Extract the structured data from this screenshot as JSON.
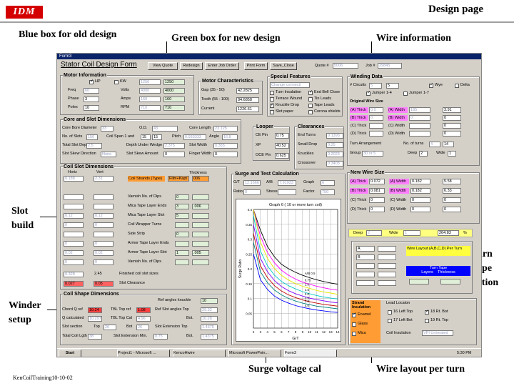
{
  "header": {
    "logo": "IDM",
    "title": "Design page",
    "footer": "KenCoilTraining10-10-02"
  },
  "callouts": {
    "blue_box": "Blue box for old design",
    "green_box": "Green box for new design",
    "wire_info": "Wire information",
    "slot_build": "Slot\nbuild",
    "winder_setup": "Winder\nsetup",
    "turn_tape": "Turn\nTape\noption",
    "surge_cal": "Surge voltage cal",
    "wire_layout": "Wire layout per turn"
  },
  "window": {
    "title": "Form3",
    "form_title": "Stator Coil Design  Form",
    "buttons": [
      "View Quote",
      "Redesign",
      "Enter Job Order",
      "Print Form",
      "Save_Close"
    ],
    "quote_label": "Quote #",
    "quote_value": "5006",
    "job_label": "Job #",
    "job_value": "29845"
  },
  "motor_info": {
    "title": "Motor Information",
    "hp_label": "HP",
    "kw_label": "KW",
    "hp_old": "1250",
    "hp_new": "1250",
    "rows": [
      {
        "label": "Freq",
        "val": "60",
        "label2": "Volts",
        "old": "4000",
        "new": "4000"
      },
      {
        "label": "Phase",
        "val": "3",
        "label2": "Amps",
        "old": "160",
        "new": "160"
      },
      {
        "label": "Poles",
        "val": "10",
        "label2": "RPM",
        "old": "710",
        "new": "710"
      }
    ]
  },
  "motor_char": {
    "title": "Motor Characteristics",
    "rows": [
      {
        "label": "Gap (35 - 50)",
        "val": "42.2825"
      },
      {
        "label": "Tooth (55 - 100)",
        "val": "84.6858"
      },
      {
        "label": "Current",
        "val": "1226.61"
      }
    ]
  },
  "special": {
    "title": "Special Features",
    "dropdown": "Change connecti",
    "items": [
      {
        "label": "Turn Insulation",
        "on": false
      },
      {
        "label": "End Bell Close",
        "on": true
      },
      {
        "label": "Terrace Wound",
        "on": false
      },
      {
        "label": "Tin Leads",
        "on": false
      },
      {
        "label": "Knuckle Drop",
        "on": true
      },
      {
        "label": "Tape Leads",
        "on": false
      },
      {
        "label": "Slot paper",
        "on": false
      },
      {
        "label": "Corona shields",
        "on": false
      }
    ]
  },
  "winding": {
    "title": "Winding Data",
    "circuits_label": "# Circuits",
    "circuits_old": "5",
    "circuits_new": "5",
    "wye_label": "Wye",
    "delta_label": "Delta",
    "jumper14": "Jumper 1-4",
    "jumper17": "Jumper 1-7",
    "orig_title": "Original Wire Size",
    "orig_rows": [
      {
        "a": "(A) Thick",
        "av": "0.0",
        "b": "(A) Width",
        "bv": "185",
        "bn": "3.91"
      },
      {
        "a": "(B) Thick",
        "av": "0",
        "b": "(B) Width",
        "bv": "0",
        "bn": "0"
      },
      {
        "a": "(C) Thick",
        "av": "",
        "b": "(C) Width",
        "bv": "",
        "bn": "0"
      },
      {
        "a": "(D) Thick",
        "av": "",
        "b": "(D) Width",
        "bv": "",
        "bn": "0"
      }
    ],
    "turn_arr": "Turn Arrangement",
    "no_turns": "No. of turns",
    "turns_old": "4",
    "turns_new": "14",
    "group": "Group",
    "group_val": "30 or 5",
    "deep": "Deep",
    "deep_val": "2",
    "wide": "Wide",
    "wide_val": "1"
  },
  "new_wire": {
    "title": "New Wire Size",
    "rows": [
      {
        "a": "(A) Thick",
        "av": "0.072",
        "b": "(A) Width",
        "bv": "0.182",
        "n": "5.58"
      },
      {
        "a": "(B) Thick",
        "av": "0.081",
        "b": "(B) Width",
        "bv": "0.182",
        "n": "6.33"
      },
      {
        "a": "(C) Thick",
        "av": "0",
        "b": "(C) Width",
        "bv": "0",
        "n": "0"
      },
      {
        "a": "(D) Thick",
        "av": "0",
        "b": "(D) Width",
        "bv": "0",
        "n": "0"
      }
    ],
    "deep": "Deep",
    "deep_val": "2",
    "wide": "Wide",
    "wide_val": "1",
    "total": "264.83",
    "pct": "%"
  },
  "core_slot": {
    "title": "Core and Slot Dimensions",
    "bore": "Core Bore Diameter",
    "bore_v": "33",
    "od": "O.D.",
    "od_v": "43",
    "length": "Core Length",
    "length_v": "23.125",
    "slots": "No. of Slots",
    "slots_v": "150",
    "span": "Coil Span 1 and",
    "span_v": "15",
    "span_v2": "15",
    "pitch": "Pitch",
    "pitch_v": "0.933333",
    "angle": "Angle",
    "angle_v": "16.8",
    "depth": "Total Slot Depth",
    "depth_v": "2.5",
    "wedge": "Depth Under Wedge",
    "wedge_v": "2.375",
    "width": "Slot Width",
    "width_v": "0.355",
    "skew_dir": "Slot Skew Direction",
    "skew_dir_v": "None",
    "skew_amt": "Slot Skew Amount",
    "skew_amt_v": "0",
    "finger": "Finger Width",
    "finger_v": "0"
  },
  "looper": {
    "title": "Looper",
    "rows": [
      {
        "label": "CE Pin",
        "v": "0.75"
      },
      {
        "label": "XP",
        "v": "40.52"
      },
      {
        "label": "OCE Pin",
        "v": "0.625"
      }
    ]
  },
  "clearances": {
    "title": "Clearances",
    "rows": [
      {
        "label": "End Turns",
        "v": "0.1393"
      },
      {
        "label": "Small Drop",
        "v": "0.25"
      },
      {
        "label": "Knuckles",
        "v": "0.2023"
      },
      {
        "label": "Crossover",
        "v": "0.3403"
      }
    ]
  },
  "coil_slot": {
    "title": "Coil Slot Dimensions",
    "horiz": "Horiz",
    "vert": "Vert",
    "thickness": "Thickness",
    "rows": [
      {
        "h": "0.188",
        "v": "2.31",
        "label": "Coil Strands (Type)",
        "t1": "Film+Kapt",
        "t2": "006",
        "style": "orange"
      },
      {
        "h": "",
        "v": "",
        "label": "",
        "t1": "",
        "t2": "",
        "style": "none"
      },
      {
        "h": "",
        "v": "",
        "label": "Varnish No. of Dips",
        "t1": "0",
        "t2": "",
        "style": ""
      },
      {
        "h": "",
        "v": "",
        "label": "Mica Tape Layer Ends",
        "t1": "3",
        "t2": ".006",
        "style": ""
      },
      {
        "h": "0.12",
        "v": "0.12",
        "label": "Mica Tape Layer Slot",
        "t1": "5",
        "t2": "",
        "style": ""
      },
      {
        "h": "0",
        "v": "0",
        "label": "Coil Wrapper Turns",
        "t1": "",
        "t2": "",
        "style": ""
      },
      {
        "h": "",
        "v": "",
        "label": "Side Strip",
        "t1": "0",
        "t2": "",
        "style": ""
      },
      {
        "h": "0",
        "v": "0",
        "label": "Armor Tape Layer Ends",
        "t1": "",
        "t2": "",
        "style": ""
      },
      {
        "h": "0.02",
        "v": "0.02",
        "label": "Armor Tape Layer Slot",
        "t1": "1",
        "t2": ".005",
        "style": ""
      },
      {
        "h": "0",
        "v": "0",
        "label": "Varnish No. of Dips",
        "t1": "",
        "t2": "",
        "style": ""
      }
    ],
    "finished_label": "Finished coil slot sizes",
    "finished_h": "0.328",
    "finished_v": "2.45",
    "clearance_label": "Slot Clearance",
    "clearance_h": "0.027",
    "clearance_v": "0.05"
  },
  "coil_shape": {
    "title": "Coil Shape Dimensions",
    "knuckle": "Ref angles knuckle",
    "knuckle_v": "10",
    "chord": "Chord Q ref",
    "chord_v": "10.24",
    "tbl_ref": "TBL Top ref",
    "tbl_ref_v": "1.08",
    "slot_top": "Ref Slot angles Top",
    "slot_top_v": "29.32",
    "qcalc": "Q calculated",
    "qcalc_v": "10.297",
    "tbl_cal": "TBL Top Cal",
    "tbl_cal_v": "4.96",
    "bot1": "Bot.",
    "bot1_v": "10.28",
    "slot_sec": "Slot section",
    "top": "Top",
    "top_v": "26",
    "bot2": "Bot",
    "bot2_v": "26",
    "slot_ext": "Slot Extension Top",
    "slot_ext_v": "1.4375",
    "total": "Total Coil Lgth",
    "total_v": "38",
    "slot_ext_min": "Slot Extension Min.",
    "slot_ext_min_v": "0.75",
    "bot3": "Bot.",
    "bot3_v": "1.4375"
  },
  "surge": {
    "title": "Surge and Test Calculation",
    "gt": "G/T",
    "gt_v": "12.1666",
    "ab": "A/B",
    "ab_v": "7.91933",
    "graph": "Graph",
    "graph_v": "6",
    "ratio": "Ratio",
    "ratio_v": "0",
    "stress": "Stress",
    "stress_v": "",
    "factor": "Factor",
    "factor_v": "750"
  },
  "chart_data": {
    "type": "line",
    "title": "Graph 6 ( 10 or more turn coil)",
    "xlabel": "G/T",
    "ylabel": "Surge Ratio",
    "xlim": [
      2,
      14
    ],
    "ylim": [
      0,
      0.4
    ],
    "x_ticks": [
      2,
      3,
      4,
      5,
      6,
      7,
      8,
      9,
      10,
      11,
      12,
      13,
      14
    ],
    "y_ticks": [
      0.05,
      0.1,
      0.15,
      0.2,
      0.25,
      0.3,
      0.35,
      0.4
    ],
    "legend_title": "A/B 0.5",
    "x": [
      2,
      3,
      4,
      5,
      6,
      7,
      8,
      9,
      10,
      11,
      12,
      13,
      14
    ],
    "series": [
      {
        "name": "0.5",
        "color": "#000000",
        "values": [
          0.4,
          0.33,
          0.275,
          0.24,
          0.215,
          0.2,
          0.188,
          0.178,
          0.17,
          0.163,
          0.157,
          0.152,
          0.148
        ]
      },
      {
        "name": "0.75",
        "color": "#ff00ff",
        "values": [
          0.4,
          0.31,
          0.255,
          0.22,
          0.195,
          0.178,
          0.165,
          0.155,
          0.148,
          0.141,
          0.136,
          0.131,
          0.128
        ]
      },
      {
        "name": "1.0",
        "color": "#e6e600",
        "values": [
          0.4,
          0.29,
          0.235,
          0.2,
          0.178,
          0.162,
          0.15,
          0.141,
          0.134,
          0.127,
          0.122,
          0.118,
          0.114
        ]
      },
      {
        "name": "1.5",
        "color": "#00c8c8",
        "values": [
          0.38,
          0.26,
          0.21,
          0.178,
          0.157,
          0.143,
          0.132,
          0.123,
          0.116,
          0.11,
          0.105,
          0.101,
          0.098
        ]
      },
      {
        "name": "2.0",
        "color": "#8000ff",
        "values": [
          0.35,
          0.235,
          0.19,
          0.16,
          0.14,
          0.126,
          0.116,
          0.108,
          0.101,
          0.096,
          0.092,
          0.088,
          0.085
        ]
      },
      {
        "name": "2.5",
        "color": "#c00000",
        "values": [
          0.32,
          0.21,
          0.17,
          0.143,
          0.125,
          0.112,
          0.103,
          0.095,
          0.089,
          0.084,
          0.08,
          0.077,
          0.074
        ]
      },
      {
        "name": "3.0",
        "color": "#008080",
        "values": [
          0.29,
          0.19,
          0.153,
          0.128,
          0.112,
          0.1,
          0.091,
          0.084,
          0.079,
          0.074,
          0.071,
          0.068,
          0.065
        ]
      },
      {
        "name": "4.0",
        "color": "#0000ff",
        "values": [
          0.25,
          0.163,
          0.13,
          0.108,
          0.094,
          0.084,
          0.076,
          0.07,
          0.065,
          0.061,
          0.058,
          0.055,
          0.053
        ]
      }
    ]
  },
  "wire_layout": {
    "label": "Wire Layout (A,B,C,D) Per Turn",
    "turn_tape": "Turn Tape",
    "layers": "Layers",
    "thickness": "Thickness",
    "col1": [
      "A",
      "B",
      "",
      "",
      ""
    ],
    "col2": [
      "",
      "",
      "",
      "",
      ""
    ]
  },
  "strand": {
    "title": "Strand Insulation",
    "items": [
      {
        "label": "Enamel",
        "on": true
      },
      {
        "label": "Glass",
        "on": false
      },
      {
        "label": "Mica",
        "on": false
      }
    ],
    "lead_title": "Lead Locaton",
    "leads": [
      {
        "label": "16 Left Top",
        "on": false
      },
      {
        "label": "18 Rt. Bot",
        "on": true
      },
      {
        "label": "17 Left Bot",
        "on": false
      },
      {
        "label": "19 Rt. Top",
        "on": false
      }
    ],
    "coil_ins": "Coil Insulation",
    "coil_ins_v": "VPI Untreated"
  },
  "taskbar": {
    "start": "Start",
    "items": [
      "Project1 - Microsoft ...",
      "KencoHwire",
      "Microsoft PowerPoin...",
      "Form3"
    ],
    "time": "5:30 PM"
  }
}
